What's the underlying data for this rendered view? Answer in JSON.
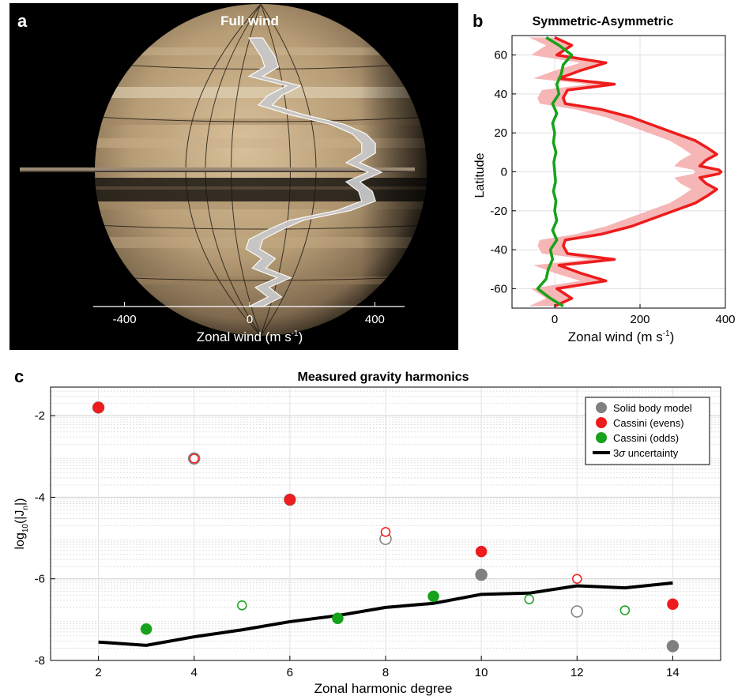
{
  "panels": {
    "a": {
      "letter": "a",
      "title": "Full wind",
      "xlabel_main": "Zonal wind (m s",
      "xlabel_sup": "-1",
      "xlabel_end": ")",
      "xticks": [
        "-400",
        "0",
        "400"
      ]
    },
    "b": {
      "letter": "b",
      "title": "Symmetric-Asymmetric",
      "ylabel": "Latitude",
      "xlabel_main": "Zonal wind (m s",
      "xlabel_sup": "-1",
      "xlabel_end": ")",
      "xticks": [
        "0",
        "200",
        "400"
      ],
      "yticks": [
        "60",
        "40",
        "20",
        "0",
        "-20",
        "-40",
        "-60"
      ]
    },
    "c": {
      "letter": "c",
      "title": "Measured gravity harmonics",
      "xlabel": "Zonal harmonic degree",
      "ylabel_pre": "log",
      "ylabel_sub": "10",
      "ylabel_mid": "(|J",
      "ylabel_sub2": "n",
      "ylabel_end": "|)",
      "xticks": [
        "2",
        "4",
        "6",
        "8",
        "10",
        "12",
        "14"
      ],
      "yticks": [
        "-2",
        "-4",
        "-6",
        "-8"
      ],
      "legend": {
        "solid_body": "Solid body model",
        "evens": "Cassini (evens)",
        "odds": "Cassini (odds)",
        "uncertainty_pre": "3",
        "uncertainty_sym": "σ",
        "uncertainty_post": " uncertainty"
      }
    }
  },
  "colors": {
    "cassini_evens": "#ee1c1c",
    "cassini_odds": "#16a21a",
    "solid_body": "#808080",
    "uncertainty": "#000000",
    "wind_band": "#c8c8c8",
    "sym_band": "#f7b6b6"
  },
  "chart_data": [
    {
      "type": "area",
      "panel": "a",
      "title": "Full wind",
      "xlabel": "Zonal wind (m s-1)",
      "xlim": [
        -500,
        500
      ],
      "ylim": [
        -70,
        70
      ],
      "x_unit": "m s-1",
      "series": [
        {
          "lat": [
            70,
            65,
            60,
            55,
            50,
            45,
            40,
            35,
            30,
            25,
            20,
            15,
            10,
            5,
            0,
            -5,
            -10,
            -15,
            -20,
            -25,
            -30,
            -35,
            -40,
            -45,
            -50,
            -55,
            -60,
            -65,
            -70
          ],
          "wind": [
            20,
            40,
            60,
            70,
            20,
            140,
            80,
            50,
            150,
            280,
            350,
            380,
            380,
            330,
            400,
            330,
            370,
            380,
            300,
            150,
            80,
            20,
            10,
            60,
            30,
            110,
            40,
            80,
            20
          ]
        }
      ]
    },
    {
      "type": "line",
      "panel": "b",
      "title": "Symmetric-Asymmetric",
      "xlabel": "Zonal wind (m s-1)",
      "ylabel": "Latitude",
      "xlim": [
        -100,
        400
      ],
      "ylim": [
        -70,
        70
      ],
      "series": [
        {
          "component": "symmetric",
          "lat": [
            69,
            65,
            60,
            56,
            52,
            48,
            45,
            42,
            38,
            35,
            32,
            28,
            24,
            20,
            16,
            12,
            9,
            6,
            3,
            1,
            0,
            -1,
            -3,
            -6,
            -9,
            -12,
            -16,
            -20,
            -24,
            -28,
            -32,
            -35,
            -38,
            -42,
            -45,
            -48,
            -52,
            -56,
            -60,
            -65,
            -69
          ],
          "u": [
            0,
            40,
            5,
            120,
            60,
            10,
            140,
            30,
            20,
            25,
            110,
            180,
            230,
            280,
            330,
            360,
            380,
            355,
            340,
            385,
            390,
            385,
            340,
            355,
            380,
            360,
            330,
            280,
            230,
            180,
            110,
            25,
            20,
            30,
            140,
            10,
            60,
            120,
            5,
            40,
            0
          ]
        },
        {
          "component": "asymmetric",
          "lat": [
            69,
            65,
            60,
            55,
            50,
            45,
            40,
            35,
            30,
            25,
            20,
            15,
            10,
            5,
            0,
            -5,
            -10,
            -15,
            -20,
            -25,
            -30,
            -35,
            -40,
            -45,
            -50,
            -55,
            -60,
            -65,
            -69
          ],
          "u": [
            -20,
            10,
            40,
            20,
            15,
            5,
            10,
            -5,
            5,
            -5,
            0,
            -3,
            3,
            -2,
            0,
            2,
            -3,
            3,
            0,
            5,
            -5,
            5,
            -10,
            -5,
            -15,
            -20,
            -40,
            -10,
            20
          ]
        }
      ]
    },
    {
      "type": "scatter",
      "panel": "c",
      "title": "Measured gravity harmonics",
      "xlabel": "Zonal harmonic degree",
      "ylabel": "log10(|Jn|)",
      "xlim": [
        1,
        15
      ],
      "ylim": [
        -8,
        -1.3
      ],
      "series": [
        {
          "name": "Solid body model",
          "points": [
            {
              "n": 2,
              "v": -1.8,
              "filled": true
            },
            {
              "n": 4,
              "v": -3.05,
              "filled": false
            },
            {
              "n": 6,
              "v": -4.06,
              "filled": true
            },
            {
              "n": 8,
              "v": -5.02,
              "filled": false
            },
            {
              "n": 10,
              "v": -5.9,
              "filled": true
            },
            {
              "n": 12,
              "v": -6.8,
              "filled": false
            },
            {
              "n": 14,
              "v": -7.65,
              "filled": true
            }
          ]
        },
        {
          "name": "Cassini (evens)",
          "points": [
            {
              "n": 2,
              "v": -1.8,
              "filled": true
            },
            {
              "n": 4,
              "v": -3.05,
              "filled": false
            },
            {
              "n": 6,
              "v": -4.06,
              "filled": true
            },
            {
              "n": 8,
              "v": -4.85,
              "filled": false
            },
            {
              "n": 10,
              "v": -5.33,
              "filled": true
            },
            {
              "n": 12,
              "v": -6.0,
              "filled": false
            },
            {
              "n": 14,
              "v": -6.62,
              "filled": true
            }
          ]
        },
        {
          "name": "Cassini (odds)",
          "points": [
            {
              "n": 3,
              "v": -7.23,
              "filled": true
            },
            {
              "n": 5,
              "v": -6.65,
              "filled": false
            },
            {
              "n": 7,
              "v": -6.97,
              "filled": true
            },
            {
              "n": 9,
              "v": -6.43,
              "filled": true
            },
            {
              "n": 11,
              "v": -6.5,
              "filled": false
            },
            {
              "n": 13,
              "v": -6.77,
              "filled": false
            }
          ]
        },
        {
          "name": "3σ uncertainty",
          "type": "line",
          "x": [
            2,
            3,
            4,
            5,
            6,
            7,
            8,
            9,
            10,
            11,
            12,
            13,
            14
          ],
          "y": [
            -7.55,
            -7.63,
            -7.42,
            -7.25,
            -7.05,
            -6.9,
            -6.7,
            -6.6,
            -6.38,
            -6.35,
            -6.17,
            -6.22,
            -6.1
          ]
        }
      ]
    }
  ]
}
